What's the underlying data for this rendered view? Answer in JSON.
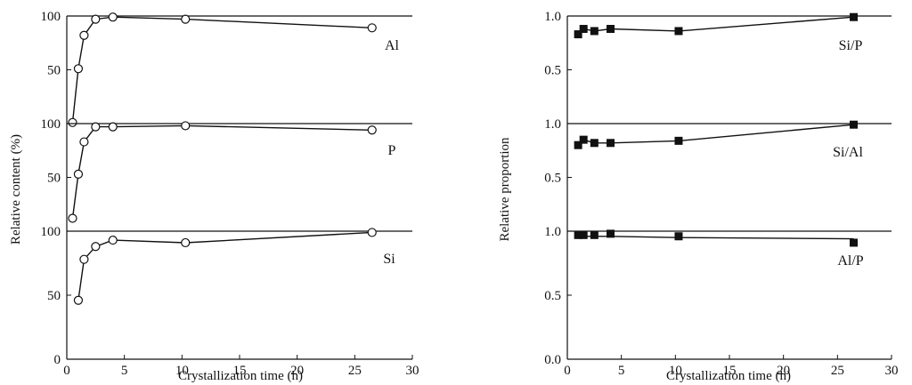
{
  "chart_data": [
    {
      "type": "line",
      "xlabel": "Crystallization time (h)",
      "ylabel": "Relative content (%)",
      "xlim": [
        0,
        30
      ],
      "x_ticks": [
        "0",
        "5",
        "10",
        "15",
        "20",
        "25",
        "30"
      ],
      "marker": "open-circle",
      "panels": [
        {
          "label": "Al",
          "ylim": [
            0,
            100
          ],
          "y_ticks": [
            "50",
            "100"
          ],
          "x": [
            0.5,
            1,
            1.5,
            2.5,
            4,
            10.3,
            26.5
          ],
          "values": [
            1,
            51,
            82,
            97,
            99,
            97,
            89
          ]
        },
        {
          "label": "P",
          "ylim": [
            0,
            100
          ],
          "y_ticks": [
            "50",
            "100"
          ],
          "x": [
            0.5,
            1,
            1.5,
            2.5,
            4,
            10.3,
            26.5
          ],
          "values": [
            12,
            53,
            83,
            97,
            97,
            98,
            94
          ]
        },
        {
          "label": "Si",
          "ylim": [
            0,
            100
          ],
          "y_ticks": [
            "0",
            "50",
            "100"
          ],
          "x": [
            1,
            1.5,
            2.5,
            4,
            10.3,
            26.5
          ],
          "values": [
            46,
            78,
            88,
            93,
            91,
            99
          ]
        }
      ]
    },
    {
      "type": "line",
      "xlabel": "Crystallization time (h)",
      "ylabel": "Relative proportion",
      "xlim": [
        0,
        30
      ],
      "x_ticks": [
        "0",
        "5",
        "10",
        "15",
        "20",
        "25",
        "30"
      ],
      "marker": "filled-square",
      "panels": [
        {
          "label": "Si/P",
          "ylim": [
            0,
            1
          ],
          "y_ticks": [
            "0.5",
            "1.0"
          ],
          "x": [
            1,
            1.5,
            2.5,
            4,
            10.3,
            26.5
          ],
          "values": [
            0.83,
            0.88,
            0.86,
            0.88,
            0.86,
            0.99
          ]
        },
        {
          "label": "Si/Al",
          "ylim": [
            0,
            1
          ],
          "y_ticks": [
            "0.5",
            "1.0"
          ],
          "x": [
            1,
            1.5,
            2.5,
            4,
            10.3,
            26.5
          ],
          "values": [
            0.8,
            0.85,
            0.82,
            0.82,
            0.84,
            0.99
          ]
        },
        {
          "label": "Al/P",
          "ylim": [
            0,
            1
          ],
          "y_ticks": [
            "0.0",
            "0.5",
            "1.0"
          ],
          "x": [
            1,
            1.5,
            2.5,
            4,
            10.3,
            26.5
          ],
          "values": [
            0.97,
            0.97,
            0.97,
            0.98,
            0.96,
            0.91
          ],
          "trend": [
            0.96,
            0.96,
            0.96,
            0.96,
            0.95,
            0.94
          ]
        }
      ]
    }
  ]
}
